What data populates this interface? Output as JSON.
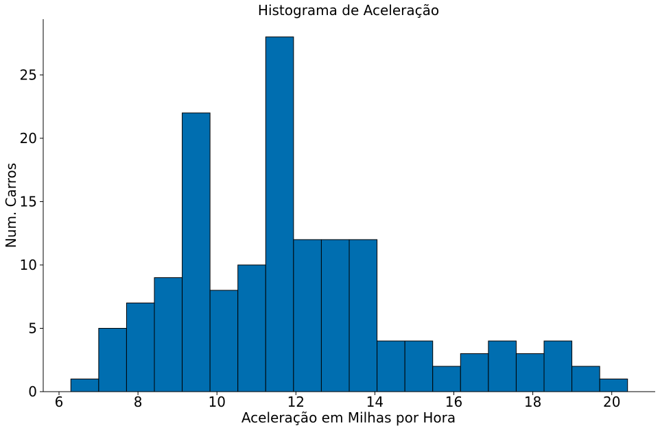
{
  "chart_data": {
    "type": "bar",
    "title": "Histograma de Aceleração",
    "xlabel": "Aceleração em Milhas por Hora",
    "ylabel": "Num. Carros",
    "bar_color": "#006eb0",
    "edge_color": "#000000",
    "xlim": [
      5.6,
      21.1
    ],
    "ylim": [
      0,
      29.4
    ],
    "xticks": [
      6,
      8,
      10,
      12,
      14,
      16,
      18,
      20
    ],
    "yticks": [
      0,
      5,
      10,
      15,
      20,
      25
    ],
    "bin_edges": [
      6.3,
      7.005,
      7.71,
      8.415,
      9.12,
      9.825,
      10.53,
      11.235,
      11.94,
      12.645,
      13.35,
      14.055,
      14.76,
      15.465,
      16.17,
      16.875,
      17.58,
      18.285,
      18.99,
      19.695,
      20.4
    ],
    "values": [
      1,
      5,
      7,
      9,
      22,
      8,
      10,
      28,
      12,
      12,
      12,
      4,
      4,
      2,
      3,
      4,
      3,
      4,
      2,
      1
    ],
    "grid": false,
    "legend": "none"
  }
}
